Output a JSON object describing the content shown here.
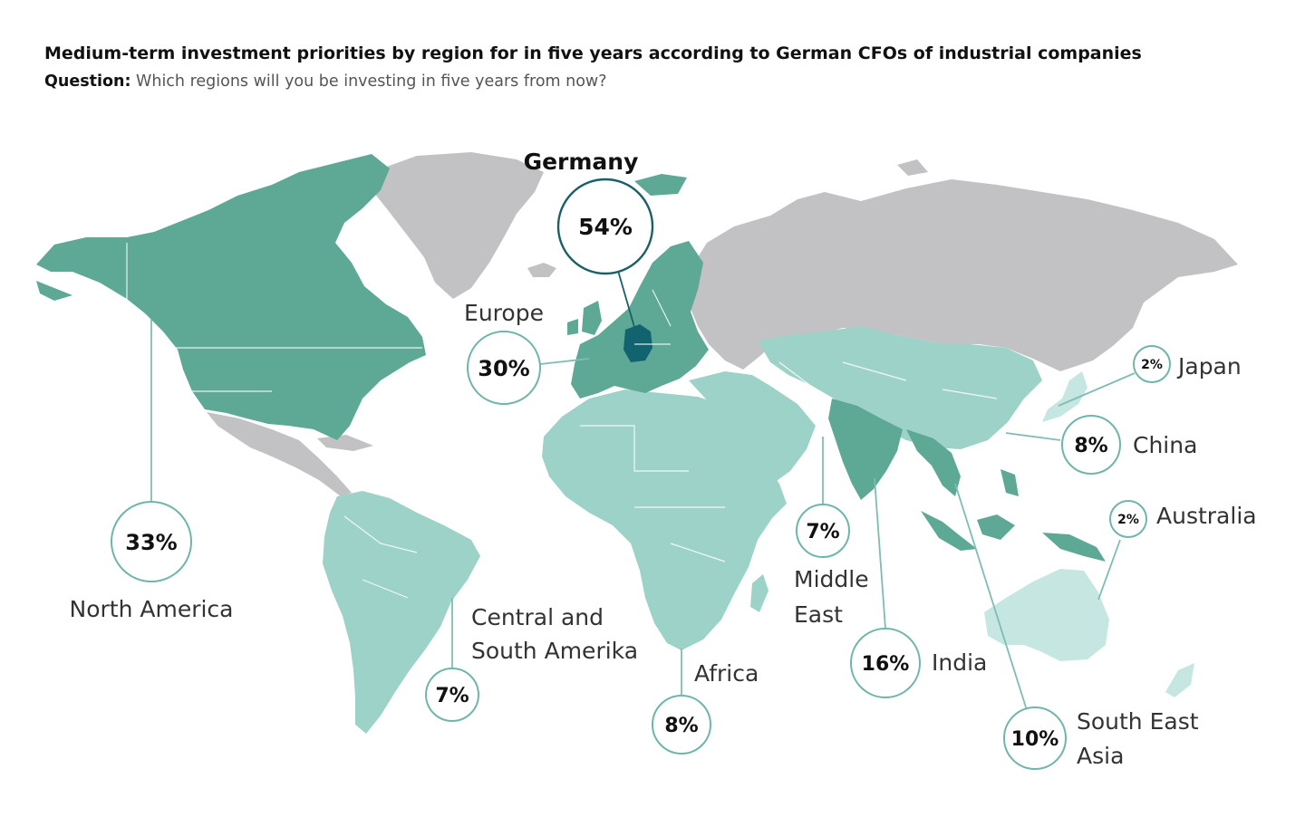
{
  "header": {
    "title": "Medium-term investment priorities by region for in five years according to German CFOs of industrial companies",
    "question_label": "Question:",
    "question_text": "Which regions will you be investing in five years from now?"
  },
  "colors": {
    "highlight_dark": "#11636f",
    "region_high": "#5ea896",
    "region_mid": "#9dd2c8",
    "region_low": "#c6e7e1",
    "region_none": "#c2c2c4"
  },
  "regions": {
    "germany": {
      "name": "Germany",
      "value": "54%"
    },
    "europe": {
      "name": "Europe",
      "value": "30%"
    },
    "north_america": {
      "name": "North America",
      "value": "33%"
    },
    "south_america": {
      "name_line1": "Central and",
      "name_line2": "South Amerika",
      "value": "7%"
    },
    "africa": {
      "name": "Africa",
      "value": "8%"
    },
    "middle_east": {
      "name_line1": "Middle",
      "name_line2": "East",
      "value": "7%"
    },
    "india": {
      "name": "India",
      "value": "16%"
    },
    "south_east_asia": {
      "name_line1": "South East",
      "name_line2": "Asia",
      "value": "10%"
    },
    "china": {
      "name": "China",
      "value": "8%"
    },
    "japan": {
      "name": "Japan",
      "value": "2%"
    },
    "australia": {
      "name": "Australia",
      "value": "2%"
    }
  }
}
